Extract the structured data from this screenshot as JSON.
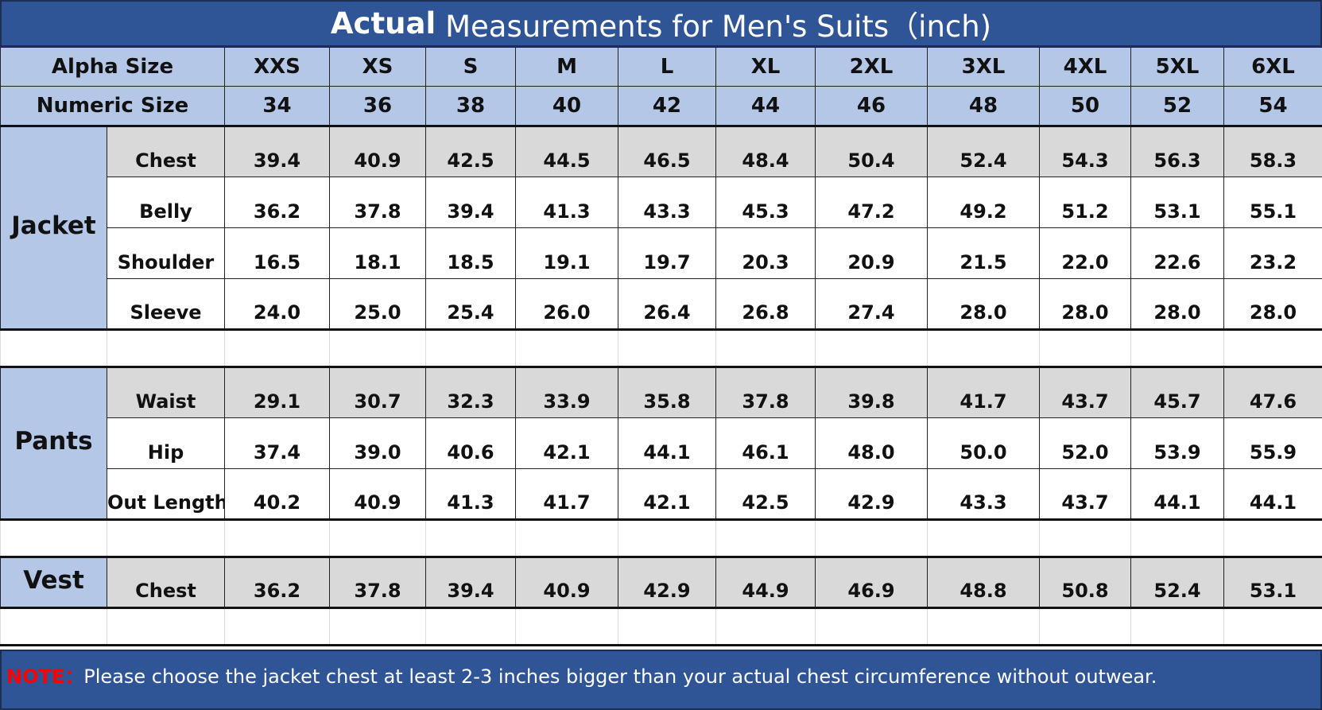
{
  "title": {
    "bold": "Actual",
    "rest": "Measurements for Men's Suits（inch)"
  },
  "header": {
    "alpha_label": "Alpha Size",
    "numeric_label": "Numeric Size",
    "alpha": [
      "XXS",
      "XS",
      "S",
      "M",
      "L",
      "XL",
      "2XL",
      "3XL",
      "4XL",
      "5XL",
      "6XL"
    ],
    "numeric": [
      "34",
      "36",
      "38",
      "40",
      "42",
      "44",
      "46",
      "48",
      "50",
      "52",
      "54"
    ]
  },
  "sections": [
    {
      "name": "Jacket",
      "rows": [
        {
          "label": "Chest",
          "values": [
            "39.4",
            "40.9",
            "42.5",
            "44.5",
            "46.5",
            "48.4",
            "50.4",
            "52.4",
            "54.3",
            "56.3",
            "58.3"
          ]
        },
        {
          "label": "Belly",
          "values": [
            "36.2",
            "37.8",
            "39.4",
            "41.3",
            "43.3",
            "45.3",
            "47.2",
            "49.2",
            "51.2",
            "53.1",
            "55.1"
          ]
        },
        {
          "label": "Shoulder",
          "values": [
            "16.5",
            "18.1",
            "18.5",
            "19.1",
            "19.7",
            "20.3",
            "20.9",
            "21.5",
            "22.0",
            "22.6",
            "23.2"
          ]
        },
        {
          "label": "Sleeve",
          "values": [
            "24.0",
            "25.0",
            "25.4",
            "26.0",
            "26.4",
            "26.8",
            "27.4",
            "28.0",
            "28.0",
            "28.0",
            "28.0"
          ]
        }
      ]
    },
    {
      "name": "Pants",
      "rows": [
        {
          "label": "Waist",
          "values": [
            "29.1",
            "30.7",
            "32.3",
            "33.9",
            "35.8",
            "37.8",
            "39.8",
            "41.7",
            "43.7",
            "45.7",
            "47.6"
          ]
        },
        {
          "label": "Hip",
          "values": [
            "37.4",
            "39.0",
            "40.6",
            "42.1",
            "44.1",
            "46.1",
            "48.0",
            "50.0",
            "52.0",
            "53.9",
            "55.9"
          ]
        },
        {
          "label": "Out Length",
          "values": [
            "40.2",
            "40.9",
            "41.3",
            "41.7",
            "42.1",
            "42.5",
            "42.9",
            "43.3",
            "43.7",
            "44.1",
            "44.1"
          ]
        }
      ]
    },
    {
      "name": "Vest",
      "rows": [
        {
          "label": "Chest",
          "values": [
            "36.2",
            "37.8",
            "39.4",
            "40.9",
            "42.9",
            "44.9",
            "46.9",
            "48.8",
            "50.8",
            "52.4",
            "53.1"
          ]
        }
      ]
    }
  ],
  "note": {
    "prefix": "NOTE：",
    "text": "Please choose the jacket chest at least 2-3 inches bigger than your actual chest circumference without outwear."
  },
  "colors": {
    "title_bg": "#2f5597",
    "header_bg": "#b4c7e7",
    "stripe_bg": "#d9d9d9",
    "note_prefix": "#ff0000"
  }
}
